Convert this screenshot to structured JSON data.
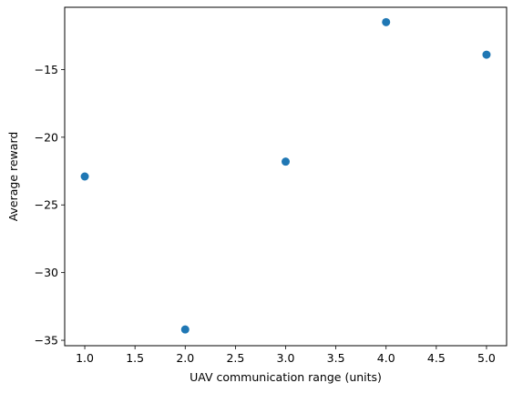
{
  "chart_data": {
    "type": "scatter",
    "title": "",
    "xlabel": "UAV communication range (units)",
    "ylabel": "Average reward",
    "xlim": [
      0.8,
      5.2
    ],
    "ylim": [
      -35.4,
      -10.4
    ],
    "xticks": [
      1.0,
      1.5,
      2.0,
      2.5,
      3.0,
      3.5,
      4.0,
      4.5,
      5.0
    ],
    "xtick_labels": [
      "1.0",
      "1.5",
      "2.0",
      "2.5",
      "3.0",
      "3.5",
      "4.0",
      "4.5",
      "5.0"
    ],
    "yticks": [
      -35,
      -30,
      -25,
      -20,
      -15
    ],
    "ytick_labels": [
      "−35",
      "−30",
      "−25",
      "−20",
      "−15"
    ],
    "grid": false,
    "series": [
      {
        "color": "#1f77b4",
        "points": [
          {
            "x": 1.0,
            "y": -22.9
          },
          {
            "x": 2.0,
            "y": -34.2
          },
          {
            "x": 3.0,
            "y": -21.8
          },
          {
            "x": 4.0,
            "y": -11.5
          },
          {
            "x": 5.0,
            "y": -13.9
          }
        ]
      }
    ]
  }
}
